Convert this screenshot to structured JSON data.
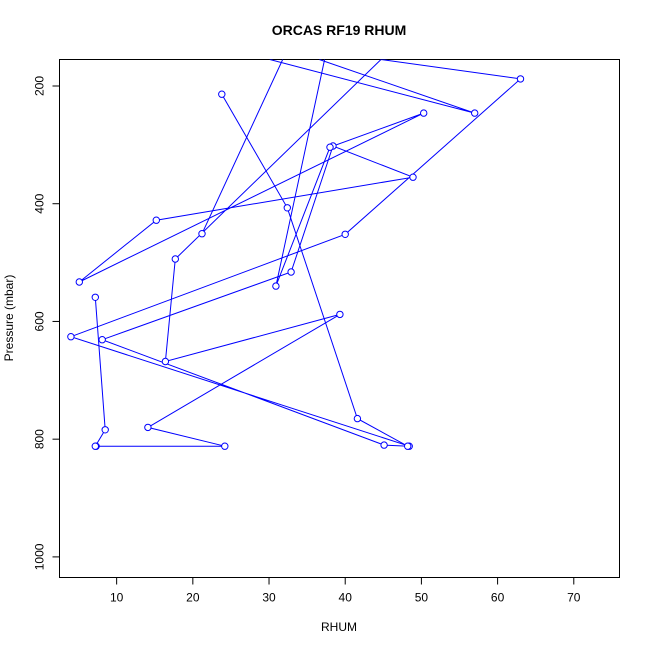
{
  "chart_data": {
    "type": "line",
    "title": "ORCAS RF19 RHUM",
    "xlabel": "RHUM",
    "ylabel": "Pressure (mbar)",
    "xlim": [
      2.5,
      76
    ],
    "ylim": [
      1035,
      155
    ],
    "y_axis_reversed": true,
    "x_ticks": [
      10,
      20,
      30,
      40,
      50,
      60,
      70
    ],
    "y_ticks": [
      200,
      400,
      600,
      800,
      1000
    ],
    "line_color": "#0000ff",
    "marker": "open-circle",
    "grid": false,
    "series": [
      {
        "points": [
          [
            7.3,
            812
          ],
          [
            24.2,
            812
          ],
          [
            14.1,
            780
          ],
          [
            39.3,
            588
          ],
          [
            16.4,
            668
          ],
          [
            17.7,
            494
          ],
          [
            44.7,
            155
          ],
          [
            63.0,
            188
          ],
          [
            40.0,
            452
          ],
          [
            4.0,
            626
          ],
          [
            48.4,
            812
          ],
          [
            45.1,
            810
          ],
          [
            8.1,
            631
          ],
          [
            32.9,
            516
          ],
          [
            38.4,
            302
          ],
          [
            48.9,
            355
          ],
          [
            15.2,
            428
          ],
          [
            5.1,
            533
          ],
          [
            50.3,
            246
          ],
          [
            38.0,
            304
          ],
          [
            30.9,
            540
          ],
          [
            37.3,
            155
          ]
        ]
      },
      {
        "points": [
          [
            30.1,
            155
          ],
          [
            57.0,
            246
          ],
          [
            36.6,
            155
          ]
        ]
      },
      {
        "points": [
          [
            7.2,
            559
          ],
          [
            8.5,
            784
          ],
          [
            7.2,
            812
          ]
        ]
      },
      {
        "points": [
          [
            21.2,
            451
          ],
          [
            31.8,
            155
          ]
        ]
      },
      {
        "points": [
          [
            23.8,
            214
          ],
          [
            32.4,
            407
          ],
          [
            41.6,
            765
          ],
          [
            48.2,
            812
          ]
        ]
      }
    ]
  }
}
